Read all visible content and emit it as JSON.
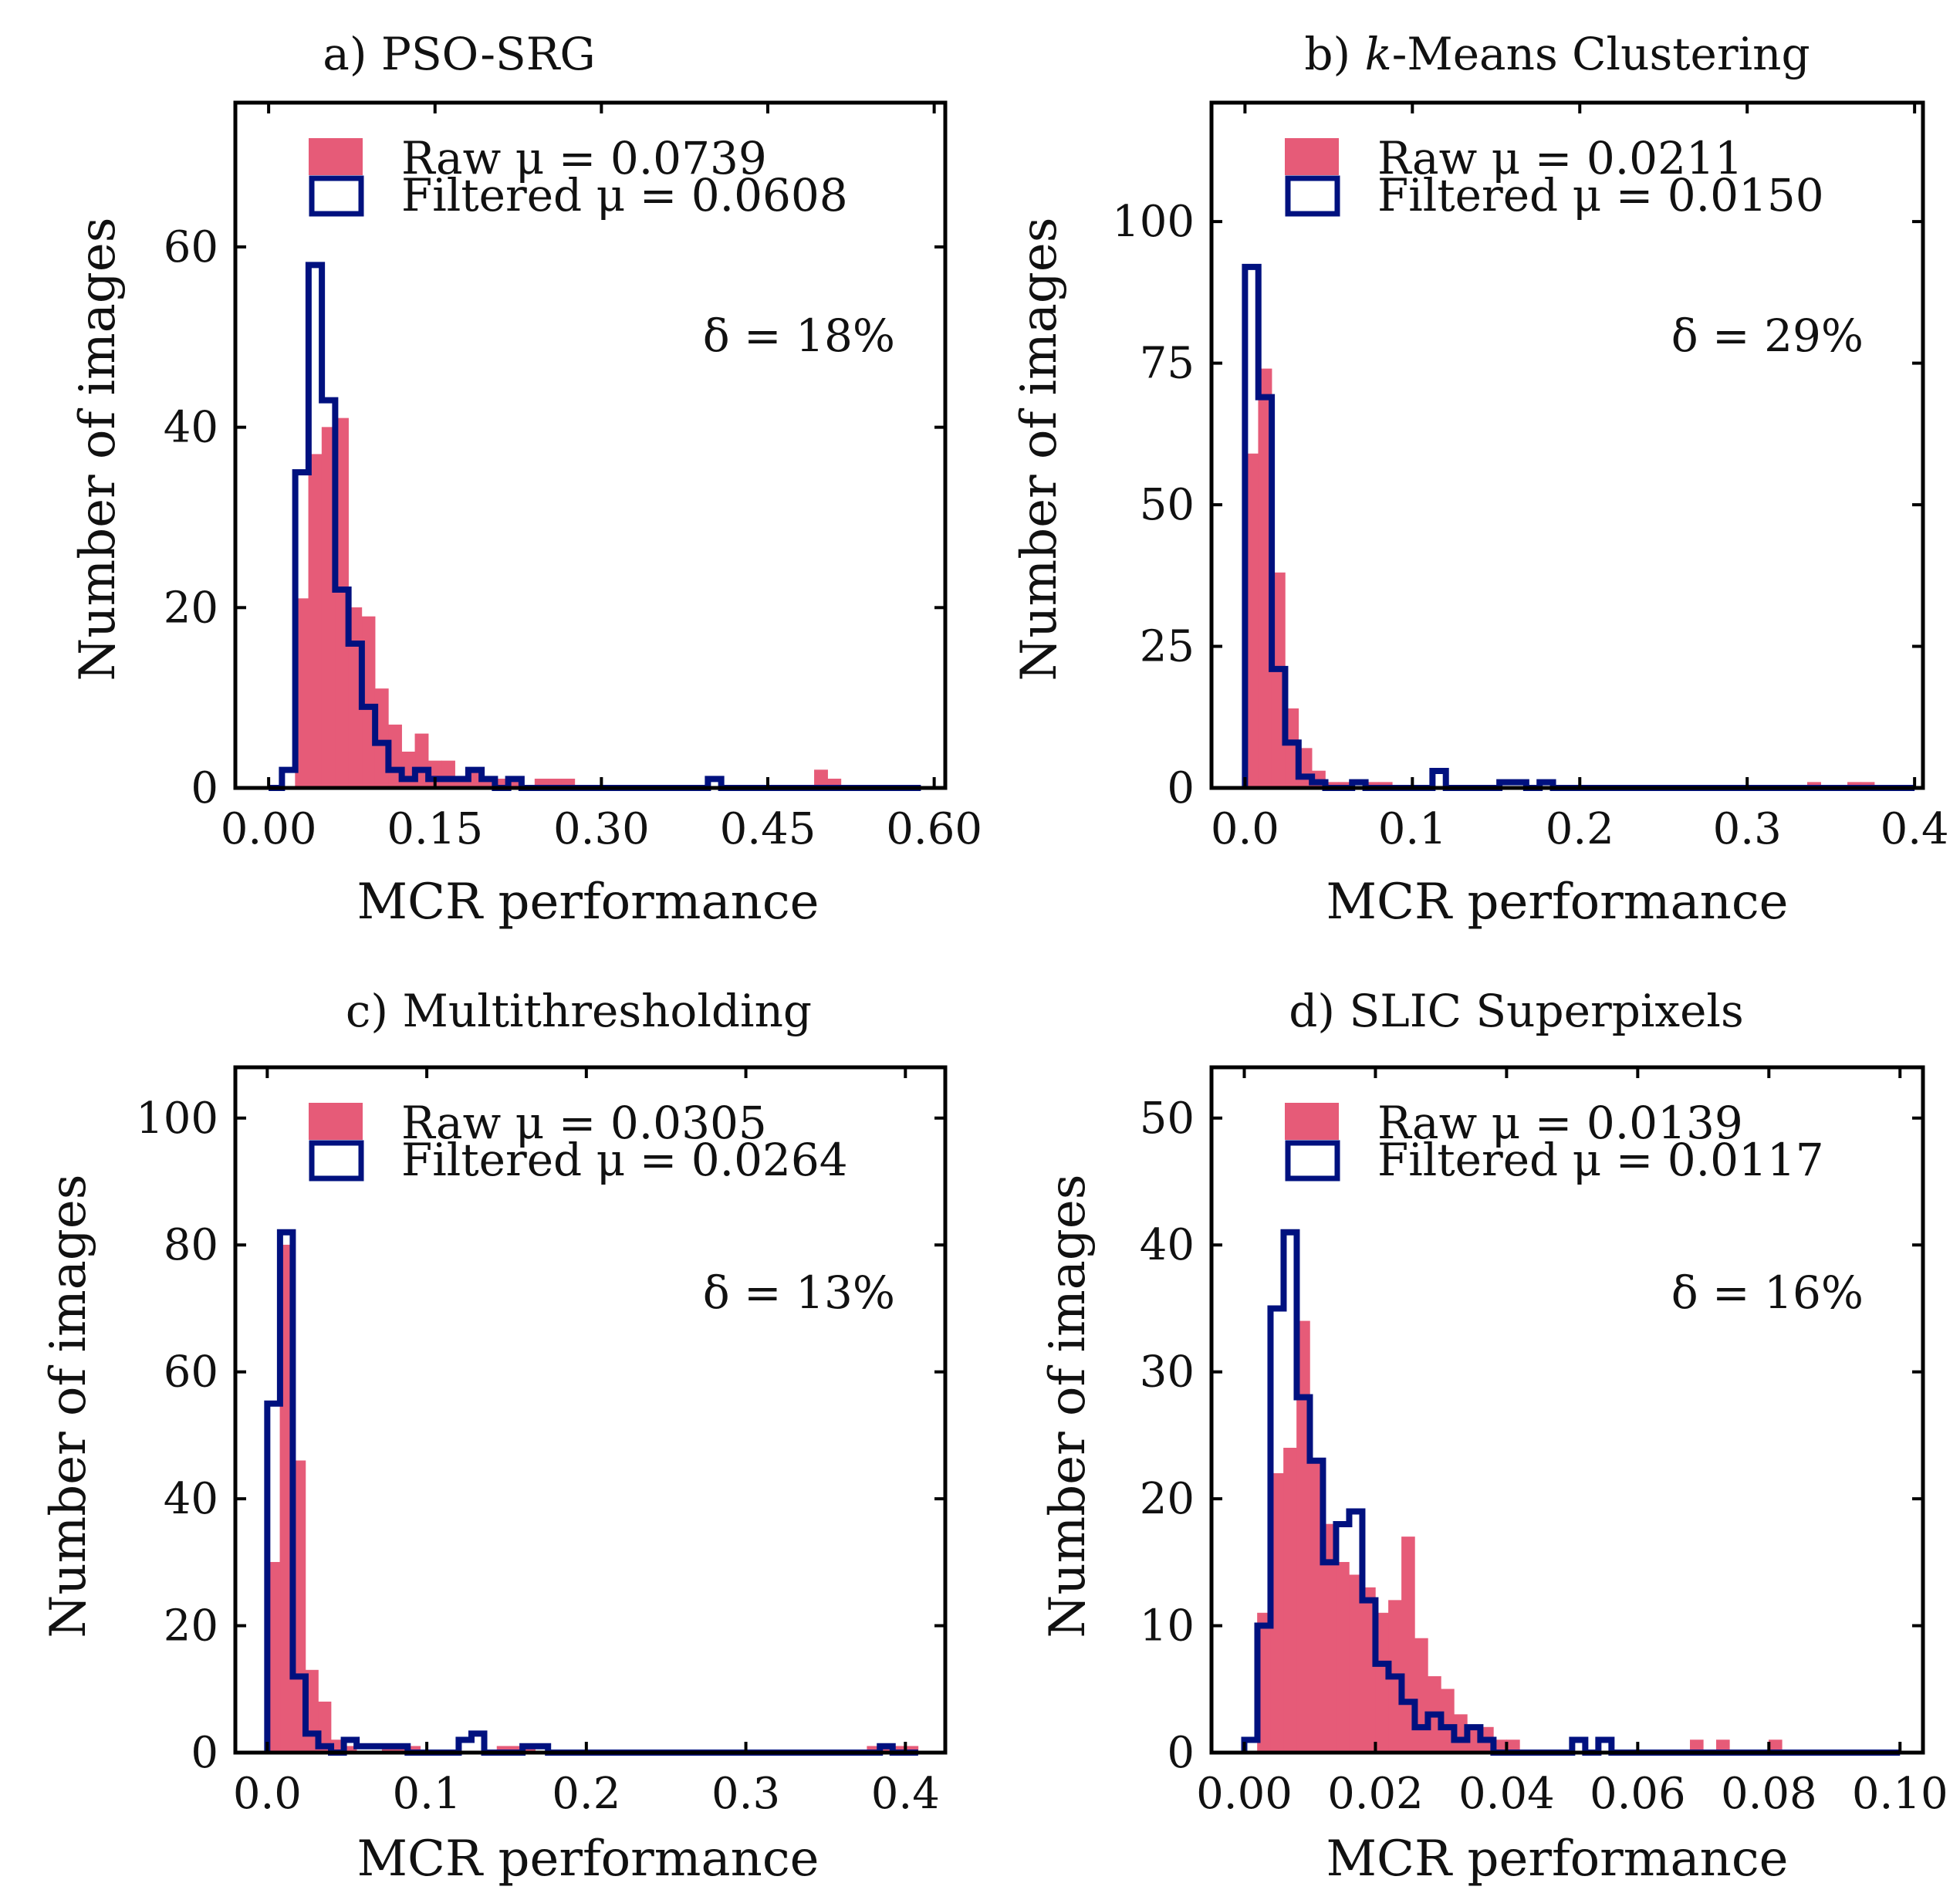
{
  "chart_data": [
    {
      "id": "a",
      "type": "bar",
      "title": "a) PSO-SRG",
      "xlabel": "MCR performance",
      "ylabel": "Number of images",
      "xlim": [
        -0.03,
        0.61
      ],
      "ylim": [
        0,
        76
      ],
      "xticks": [
        0.0,
        0.15,
        0.3,
        0.45,
        0.6
      ],
      "xtick_labels": [
        "0.00",
        "0.15",
        "0.30",
        "0.45",
        "0.60"
      ],
      "yticks": [
        0,
        20,
        40,
        60
      ],
      "ytick_labels": [
        "0",
        "20",
        "40",
        "60"
      ],
      "legend": {
        "raw_label": "Raw",
        "raw_mu": "μ = 0.0739",
        "filtered_label": "Filtered",
        "filtered_mu": "μ = 0.0608",
        "placement": "top-left"
      },
      "delta": "δ = 18%",
      "raw": {
        "name": "Raw",
        "bin_start": 0.0,
        "bin_width": 0.012,
        "counts": [
          0,
          0,
          21,
          37,
          40,
          41,
          20,
          19,
          11,
          7,
          4,
          6,
          3,
          3,
          1,
          2,
          1,
          1,
          1,
          0,
          1,
          1,
          1,
          0,
          0,
          0,
          0,
          0,
          0,
          0,
          0,
          0,
          0,
          0,
          0,
          0,
          0,
          0,
          0,
          0,
          0,
          2,
          1,
          0,
          0,
          0,
          0,
          0,
          0
        ]
      },
      "filtered": {
        "name": "Filtered",
        "bin_start": 0.0,
        "bin_width": 0.012,
        "counts": [
          0,
          2,
          35,
          58,
          43,
          22,
          16,
          9,
          5,
          2,
          1,
          2,
          1,
          1,
          1,
          2,
          1,
          0,
          1,
          0,
          0,
          0,
          0,
          0,
          0,
          0,
          0,
          0,
          0,
          0,
          0,
          0,
          0,
          1,
          0,
          0,
          0,
          0,
          0,
          0,
          0,
          0,
          0,
          0,
          0,
          0,
          0,
          0,
          0
        ]
      },
      "colors": {
        "raw": "#e65b78",
        "filtered": "#00117f"
      }
    },
    {
      "id": "b",
      "type": "bar",
      "title": "b) k-Means Clustering",
      "xlabel": "MCR performance",
      "ylabel": "Number of images",
      "xlim": [
        -0.02,
        0.405
      ],
      "ylim": [
        0,
        121
      ],
      "xticks": [
        0.0,
        0.1,
        0.2,
        0.3,
        0.4
      ],
      "xtick_labels": [
        "0.0",
        "0.1",
        "0.2",
        "0.3",
        "0.4"
      ],
      "yticks": [
        0,
        25,
        50,
        75,
        100
      ],
      "ytick_labels": [
        "0",
        "25",
        "50",
        "75",
        "100"
      ],
      "legend": {
        "raw_label": "Raw",
        "raw_mu": "μ = 0.0211",
        "filtered_label": "Filtered",
        "filtered_mu": "μ = 0.0150",
        "placement": "top-left"
      },
      "delta": "δ = 29%",
      "raw": {
        "name": "Raw",
        "bin_start": 0.0,
        "bin_width": 0.008,
        "counts": [
          59,
          74,
          38,
          14,
          7,
          3,
          1,
          1,
          0,
          1,
          1,
          0,
          0,
          0,
          0,
          0,
          0,
          0,
          0,
          0,
          0,
          0,
          0,
          0,
          0,
          0,
          0,
          0,
          0,
          0,
          0,
          0,
          0,
          0,
          0,
          0,
          0,
          0,
          0,
          0,
          0,
          0,
          1,
          0,
          0,
          1,
          1,
          0,
          0,
          0
        ]
      },
      "filtered": {
        "name": "Filtered",
        "bin_start": 0.0,
        "bin_width": 0.008,
        "counts": [
          92,
          69,
          21,
          8,
          2,
          1,
          0,
          0,
          1,
          0,
          0,
          0,
          0,
          0,
          3,
          0,
          0,
          0,
          0,
          1,
          1,
          0,
          1,
          0,
          0,
          0,
          0,
          0,
          0,
          0,
          0,
          0,
          0,
          0,
          0,
          0,
          0,
          0,
          0,
          0,
          0,
          0,
          0,
          0,
          0,
          0,
          0,
          0,
          0,
          0
        ]
      },
      "colors": {
        "raw": "#e65b78",
        "filtered": "#00117f"
      }
    },
    {
      "id": "c",
      "type": "bar",
      "title": "c) Multithresholding",
      "xlabel": "MCR performance",
      "ylabel": "Number of images",
      "xlim": [
        -0.02,
        0.425
      ],
      "ylim": [
        0,
        108
      ],
      "xticks": [
        0.0,
        0.1,
        0.2,
        0.3,
        0.4
      ],
      "xtick_labels": [
        "0.0",
        "0.1",
        "0.2",
        "0.3",
        "0.4"
      ],
      "yticks": [
        0,
        20,
        40,
        60,
        80,
        100
      ],
      "ytick_labels": [
        "0",
        "20",
        "40",
        "60",
        "80",
        "100"
      ],
      "legend": {
        "raw_label": "Raw",
        "raw_mu": "μ = 0.0305",
        "filtered_label": "Filtered",
        "filtered_mu": "μ = 0.0264",
        "placement": "top-left"
      },
      "delta": "δ = 13%",
      "raw": {
        "name": "Raw",
        "bin_start": 0.0,
        "bin_width": 0.008,
        "counts": [
          30,
          80,
          46,
          13,
          8,
          2,
          1,
          0,
          0,
          1,
          1,
          1,
          0,
          0,
          0,
          0,
          0,
          0,
          1,
          1,
          1,
          0,
          0,
          0,
          0,
          0,
          0,
          0,
          0,
          0,
          0,
          0,
          0,
          0,
          0,
          0,
          0,
          0,
          0,
          0,
          0,
          0,
          0,
          0,
          0,
          0,
          0,
          1,
          1,
          1,
          1
        ]
      },
      "filtered": {
        "name": "Filtered",
        "bin_start": 0.0,
        "bin_width": 0.008,
        "counts": [
          55,
          82,
          12,
          3,
          1,
          0,
          2,
          1,
          1,
          1,
          1,
          0,
          0,
          0,
          0,
          2,
          3,
          0,
          0,
          0,
          1,
          1,
          0,
          0,
          0,
          0,
          0,
          0,
          0,
          0,
          0,
          0,
          0,
          0,
          0,
          0,
          0,
          0,
          0,
          0,
          0,
          0,
          0,
          0,
          0,
          0,
          0,
          0,
          1,
          0,
          0
        ]
      },
      "colors": {
        "raw": "#e65b78",
        "filtered": "#00117f"
      }
    },
    {
      "id": "d",
      "type": "bar",
      "title": "d) SLIC Superpixels",
      "xlabel": "MCR performance",
      "ylabel": "Number of images",
      "xlim": [
        -0.005,
        0.1035
      ],
      "ylim": [
        0,
        54
      ],
      "xticks": [
        0.0,
        0.02,
        0.04,
        0.06,
        0.08,
        0.1
      ],
      "xtick_labels": [
        "0.00",
        "0.02",
        "0.04",
        "0.06",
        "0.08",
        "0.10"
      ],
      "yticks": [
        0,
        10,
        20,
        30,
        40,
        50
      ],
      "ytick_labels": [
        "0",
        "10",
        "20",
        "30",
        "40",
        "50"
      ],
      "legend": {
        "raw_label": "Raw",
        "raw_mu": "μ = 0.0139",
        "filtered_label": "Filtered",
        "filtered_mu": "μ = 0.0117",
        "placement": "top-left"
      },
      "delta": "δ = 16%",
      "raw": {
        "name": "Raw",
        "bin_start": 0.0,
        "bin_width": 0.002,
        "counts": [
          0,
          11,
          22,
          24,
          34,
          23,
          18,
          15,
          14,
          13,
          11,
          12,
          17,
          9,
          6,
          5,
          3,
          2,
          2,
          1,
          1,
          0,
          0,
          0,
          0,
          0,
          0,
          0,
          0,
          0,
          0,
          0,
          0,
          0,
          1,
          0,
          1,
          0,
          0,
          0,
          1,
          0,
          0,
          0,
          0,
          0,
          0,
          0,
          0,
          0
        ]
      },
      "filtered": {
        "name": "Filtered",
        "bin_start": 0.0,
        "bin_width": 0.002,
        "counts": [
          1,
          10,
          35,
          41,
          28,
          23,
          15,
          18,
          19,
          12,
          7,
          6,
          4,
          2,
          3,
          2,
          1,
          2,
          1,
          0,
          0,
          0,
          0,
          0,
          0,
          1,
          0,
          1,
          0,
          0,
          0,
          0,
          0,
          0,
          0,
          0,
          0,
          0,
          0,
          0,
          0,
          0,
          0,
          0,
          0,
          0,
          0,
          0,
          0,
          0
        ]
      },
      "colors": {
        "raw": "#e65b78",
        "filtered": "#00117f"
      }
    }
  ]
}
